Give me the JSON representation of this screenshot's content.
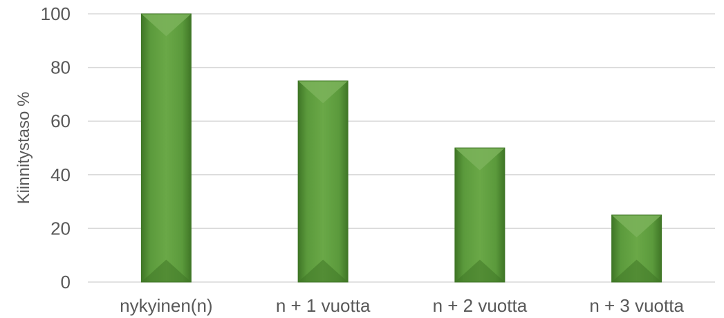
{
  "chart_data": {
    "type": "bar",
    "categories": [
      "nykyinen(n)",
      "n + 1 vuotta",
      "n + 2 vuotta",
      "n + 3 vuotta"
    ],
    "values": [
      100,
      75,
      50,
      25
    ],
    "title": "",
    "xlabel": "",
    "ylabel": "Kiinnitystaso %",
    "ylim": [
      0,
      100
    ],
    "yticks": [
      0,
      20,
      40,
      60,
      80,
      100
    ],
    "grid": true,
    "legend": "none",
    "colors": {
      "bar_main": "#5b9a3c",
      "bar_light": "#7bb35a",
      "bar_dark": "#3f7626",
      "grid": "#d9d9d9",
      "text": "#595959"
    }
  }
}
